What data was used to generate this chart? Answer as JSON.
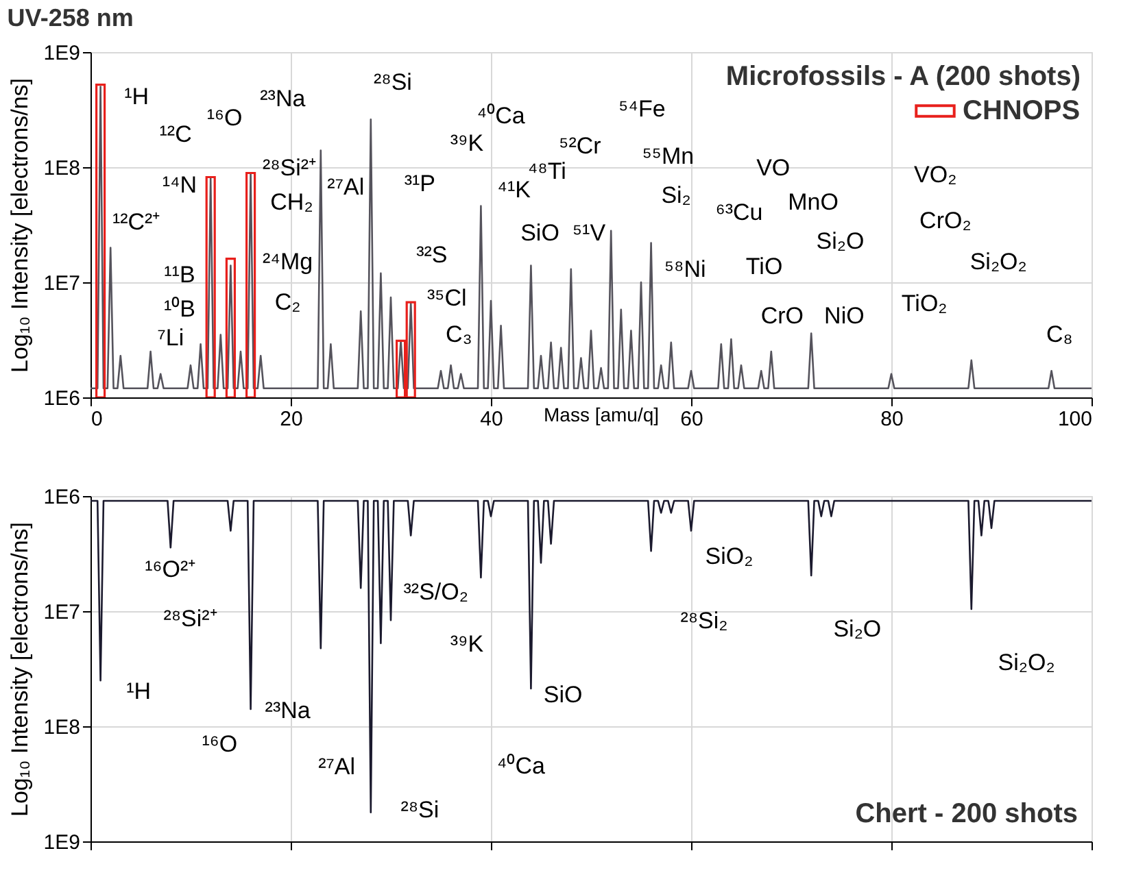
{
  "chart_data": [
    {
      "type": "line",
      "title": "UV-258 nm",
      "xlabel": "Mass [amu/q]",
      "ylabel": "Log₁₀ Intensity [electrons/ns]",
      "legend_title": "Microfossils - A (200 shots)",
      "legend": "top right",
      "log": true,
      "grid": true,
      "xlim": [
        0,
        100
      ],
      "xticks": [
        0,
        20,
        40,
        60,
        80,
        100
      ],
      "ylim": [
        1000000,
        1000000000
      ],
      "yticks": [
        {
          "value": 1000000,
          "label": "1E6"
        },
        {
          "value": 10000000,
          "label": "1E7"
        },
        {
          "value": 100000000,
          "label": "1E8"
        },
        {
          "value": 1000000000,
          "label": "1E9"
        }
      ],
      "series": [
        {
          "color": "#55535c",
          "x": [
            0,
            0.7,
            1,
            1.3,
            1.7,
            2,
            2.3,
            2.7,
            3,
            3.3,
            5.7,
            6,
            6.3,
            6.7,
            7,
            7.3,
            9.7,
            10,
            10.3,
            10.7,
            11,
            11.3,
            11.7,
            12,
            12.3,
            12.7,
            13,
            13.3,
            13.7,
            14,
            14.3,
            14.7,
            15,
            15.3,
            15.7,
            16,
            16.3,
            16.7,
            17,
            17.3,
            22.7,
            23,
            23.3,
            23.7,
            24,
            24.3,
            26.7,
            27,
            27.3,
            27.7,
            28,
            28.3,
            28.7,
            29,
            29.3,
            29.7,
            30,
            30.3,
            30.7,
            31,
            31.3,
            31.7,
            32,
            32.3,
            34.7,
            35,
            35.3,
            35.7,
            36,
            36.3,
            36.7,
            37,
            37.3,
            38.7,
            39,
            39.3,
            39.7,
            40,
            40.3,
            40.7,
            41,
            41.3,
            43.7,
            44,
            44.3,
            44.7,
            45,
            45.3,
            45.7,
            46,
            46.3,
            46.7,
            47,
            47.3,
            47.7,
            48,
            48.3,
            48.7,
            49,
            49.3,
            49.7,
            50,
            50.3,
            50.7,
            51,
            51.3,
            51.7,
            52,
            52.3,
            52.7,
            53,
            53.3,
            53.7,
            54,
            54.3,
            54.7,
            55,
            55.3,
            55.7,
            56,
            56.3,
            56.7,
            57,
            57.3,
            57.7,
            58,
            58.3,
            59.7,
            60,
            60.3,
            62.7,
            63,
            63.3,
            63.7,
            64,
            64.3,
            64.7,
            65,
            65.3,
            66.7,
            67,
            67.3,
            67.7,
            68,
            68.3,
            71.7,
            72,
            72.3,
            79.7,
            80,
            80.3,
            87.7,
            88,
            88.3,
            95.7,
            96,
            96.3,
            100
          ],
          "values": [
            1200000,
            1200000,
            500000000,
            1200000,
            1200000,
            20000000,
            1200000,
            1200000,
            2300000,
            1200000,
            1200000,
            2500000,
            1200000,
            1200000,
            1600000,
            1200000,
            1200000,
            1900000,
            1200000,
            1200000,
            2900000,
            1200000,
            1200000,
            80000000,
            1200000,
            1200000,
            3500000,
            1200000,
            1200000,
            14000000,
            1200000,
            1200000,
            2500000,
            1200000,
            1200000,
            88000000,
            1200000,
            1200000,
            2300000,
            1200000,
            1200000,
            140000000,
            1200000,
            1200000,
            2900000,
            1200000,
            1200000,
            5600000,
            1200000,
            1200000,
            260000000,
            1200000,
            1200000,
            12000000,
            1200000,
            1200000,
            7400000,
            1200000,
            1200000,
            3100000,
            1200000,
            1200000,
            6600000,
            1200000,
            1200000,
            1700000,
            1200000,
            1200000,
            1900000,
            1200000,
            1200000,
            1600000,
            1200000,
            1200000,
            46000000,
            1200000,
            1200000,
            6900000,
            1200000,
            1200000,
            4200000,
            1200000,
            1200000,
            14000000,
            1200000,
            1200000,
            2300000,
            1200000,
            1200000,
            3000000,
            1200000,
            1200000,
            2700000,
            1200000,
            1200000,
            13000000,
            1200000,
            1200000,
            2200000,
            1200000,
            1200000,
            3800000,
            1200000,
            1200000,
            1800000,
            1200000,
            1200000,
            28000000,
            1200000,
            1200000,
            5800000,
            1200000,
            1200000,
            3800000,
            1200000,
            1200000,
            10000000,
            1200000,
            1200000,
            22000000,
            1200000,
            1200000,
            1900000,
            1200000,
            1200000,
            3000000,
            1200000,
            1200000,
            1700000,
            1200000,
            1200000,
            2900000,
            1200000,
            1200000,
            3200000,
            1200000,
            1200000,
            1900000,
            1200000,
            1200000,
            1700000,
            1200000,
            1200000,
            2500000,
            1200000,
            1200000,
            3600000,
            1200000,
            1200000,
            1600000,
            1200000,
            1200000,
            2100000,
            1200000,
            1200000,
            1700000,
            1200000,
            1200000
          ]
        },
        {
          "type": "bar",
          "name": "CHNOPS",
          "color": "#e8201c",
          "x": [
            1,
            12,
            14,
            16,
            31,
            32
          ],
          "values": [
            520000000,
            82000000,
            16000000,
            89000000,
            3100000,
            6700000
          ]
        }
      ],
      "annotations": [
        "¹H",
        "¹²C²⁺",
        "¹¹B",
        "¹⁰B",
        "⁷Li",
        "¹²C",
        "¹⁴N",
        "¹⁶O",
        "²⁸Si²⁺",
        "CH₂",
        "²³Na",
        "²⁴Mg",
        "C₂",
        "²⁷Al",
        "²⁸Si",
        "³¹P",
        "³²S",
        "³⁵Cl",
        "C₃",
        "⁴⁰Ca",
        "³⁹K",
        "⁴¹K",
        "SiO",
        "⁴⁸Ti",
        "⁵¹V",
        "⁵²Cr",
        "⁵⁴Fe",
        "⁵⁵Mn",
        "Si₂",
        "⁵⁸Ni",
        "⁶³Cu",
        "VO",
        "MnO",
        "Si₂O",
        "TiO",
        "CrO",
        "NiO",
        "VO₂",
        "CrO₂",
        "TiO₂",
        "Si₂O₂",
        "C₈"
      ]
    },
    {
      "type": "line",
      "ylabel": "Log₁₀ Intensity [electrons/ns]",
      "log": true,
      "grid": true,
      "tick_labels": "y",
      "xlim": [
        0,
        100
      ],
      "xticks": [
        0,
        20,
        40,
        60,
        80,
        100
      ],
      "ylim": [
        1000000000,
        1000000
      ],
      "yticks": [
        {
          "value": 1000000,
          "label": "1E6"
        },
        {
          "value": 10000000,
          "label": "1E7"
        },
        {
          "value": 100000000,
          "label": "1E8"
        },
        {
          "value": 1000000000,
          "label": "1E9"
        }
      ],
      "series": [
        {
          "color": "#1b1a2e",
          "x": [
            0,
            0.7,
            1,
            1.3,
            7.7,
            8,
            8.3,
            13.7,
            14,
            14.3,
            15.7,
            16,
            16.3,
            22.7,
            23,
            23.3,
            26.7,
            27,
            27.3,
            27.7,
            28,
            28.3,
            28.7,
            29,
            29.3,
            29.7,
            30,
            30.3,
            31.7,
            32,
            32.3,
            38.7,
            39,
            39.3,
            39.7,
            40,
            40.3,
            43.7,
            44,
            44.3,
            44.7,
            45,
            45.3,
            45.7,
            46,
            46.3,
            55.7,
            56,
            56.3,
            56.7,
            57,
            57.3,
            57.7,
            58,
            58.3,
            59.7,
            60,
            60.3,
            71.7,
            72,
            72.3,
            72.7,
            73,
            73.3,
            73.7,
            74,
            74.3,
            87.7,
            88,
            88.3,
            88.7,
            89,
            89.3,
            89.7,
            90,
            90.3,
            100
          ],
          "values": [
            1100000,
            1100000,
            40000000,
            1100000,
            1100000,
            2800000,
            1100000,
            1100000,
            2000000,
            1100000,
            1100000,
            71000000,
            1100000,
            1100000,
            21000000,
            1100000,
            1100000,
            6300000,
            1100000,
            1100000,
            560000000,
            1100000,
            1100000,
            19000000,
            1100000,
            1100000,
            12000000,
            1100000,
            1100000,
            2200000,
            1100000,
            1100000,
            5100000,
            1100000,
            1100000,
            1500000,
            1100000,
            1100000,
            47000000,
            1100000,
            1100000,
            3800000,
            1100000,
            1100000,
            2600000,
            1100000,
            1100000,
            3000000,
            1100000,
            1100000,
            1400000,
            1100000,
            1100000,
            1400000,
            1100000,
            1100000,
            2000000,
            1100000,
            1100000,
            4900000,
            1100000,
            1100000,
            1500000,
            1100000,
            1100000,
            1500000,
            1100000,
            1100000,
            9600000,
            1100000,
            1100000,
            2200000,
            1100000,
            1100000,
            1900000,
            1100000,
            1100000
          ]
        }
      ],
      "annotations": [
        "Chert - 200 shots",
        "¹⁶O²⁺",
        "²⁸Si²⁺",
        "¹H",
        "¹⁶O",
        "²³Na",
        "²⁷Al",
        "²⁸Si",
        "³²S/O₂",
        "³⁹K",
        "⁴⁰Ca",
        "SiO",
        "²⁸Si₂",
        "SiO₂",
        "Si₂O",
        "Si₂O₂"
      ]
    }
  ]
}
